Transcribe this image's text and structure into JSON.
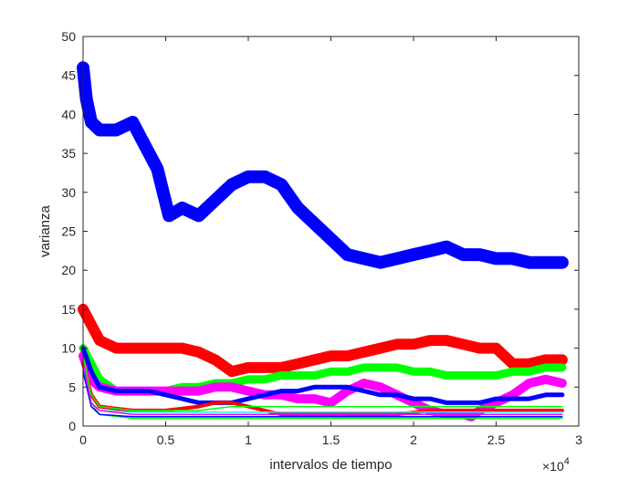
{
  "chart_data": {
    "type": "line",
    "xlabel": "intervalos de tiempo",
    "ylabel": "varianza",
    "x_exponent_label": "×10",
    "x_exponent_power": "4",
    "xlim": [
      0,
      3
    ],
    "ylim": [
      0,
      50
    ],
    "x_ticks": [
      "0",
      "0.5",
      "1",
      "1.5",
      "2",
      "2.5",
      "3"
    ],
    "y_ticks": [
      "0",
      "5",
      "10",
      "15",
      "20",
      "25",
      "30",
      "35",
      "40",
      "45",
      "50"
    ],
    "grid": false,
    "series": [
      {
        "color": "#0000ff",
        "width": 14,
        "x": [
          0,
          0.02,
          0.05,
          0.1,
          0.2,
          0.3,
          0.35,
          0.45,
          0.52,
          0.6,
          0.7,
          0.8,
          0.9,
          1.0,
          1.1,
          1.2,
          1.3,
          1.4,
          1.5,
          1.6,
          1.7,
          1.8,
          1.9,
          2.0,
          2.1,
          2.2,
          2.3,
          2.4,
          2.5,
          2.6,
          2.7,
          2.8,
          2.9
        ],
        "y": [
          46,
          42,
          39,
          38,
          38,
          39,
          37,
          33,
          27,
          28,
          27,
          29,
          31,
          32,
          32,
          31,
          28,
          26,
          24,
          22,
          21.5,
          21,
          21.5,
          22,
          22.5,
          23,
          22,
          22,
          21.5,
          21.5,
          21,
          21,
          21
        ]
      },
      {
        "color": "#ff0000",
        "width": 12,
        "x": [
          0,
          0.05,
          0.1,
          0.2,
          0.3,
          0.4,
          0.5,
          0.6,
          0.7,
          0.8,
          0.9,
          1.0,
          1.1,
          1.2,
          1.3,
          1.4,
          1.5,
          1.6,
          1.7,
          1.8,
          1.9,
          2.0,
          2.1,
          2.2,
          2.3,
          2.4,
          2.5,
          2.6,
          2.7,
          2.8,
          2.9
        ],
        "y": [
          15,
          13,
          11,
          10,
          10,
          10,
          10,
          10,
          9.5,
          8.5,
          7,
          7.5,
          7.5,
          7.5,
          8,
          8.5,
          9,
          9,
          9.5,
          10,
          10.5,
          10.5,
          11,
          11,
          10.5,
          10,
          10,
          8,
          8,
          8.5,
          8.5
        ]
      },
      {
        "color": "#00ff00",
        "width": 9,
        "x": [
          0,
          0.05,
          0.1,
          0.2,
          0.4,
          0.5,
          0.6,
          0.7,
          0.8,
          0.9,
          1.0,
          1.1,
          1.2,
          1.3,
          1.4,
          1.5,
          1.6,
          1.7,
          1.8,
          1.9,
          2.0,
          2.1,
          2.2,
          2.3,
          2.4,
          2.5,
          2.6,
          2.7,
          2.8,
          2.9
        ],
        "y": [
          10,
          8,
          6,
          4.5,
          4.5,
          4.5,
          5,
          5,
          5.5,
          5.5,
          6,
          6,
          6.5,
          6.5,
          6.5,
          7,
          7,
          7.5,
          7.5,
          7.5,
          7,
          7,
          6.5,
          6.5,
          6.5,
          6.5,
          7,
          7,
          7.5,
          7.5
        ]
      },
      {
        "color": "#ff00ff",
        "width": 10,
        "x": [
          0,
          0.05,
          0.1,
          0.2,
          0.3,
          0.5,
          0.7,
          0.8,
          0.9,
          1.0,
          1.1,
          1.2,
          1.3,
          1.4,
          1.5,
          1.6,
          1.7,
          1.8,
          1.9,
          2.0,
          2.1,
          2.2,
          2.3,
          2.35,
          2.4,
          2.5,
          2.6,
          2.7,
          2.8,
          2.9
        ],
        "y": [
          9,
          6,
          5,
          4.5,
          4.5,
          4.5,
          4.5,
          5,
          5,
          4.5,
          4,
          4,
          3.5,
          3.5,
          3,
          4.5,
          5.5,
          5,
          4,
          3,
          2,
          1.5,
          1.5,
          1.2,
          2,
          3,
          4,
          5.5,
          6,
          5.5
        ]
      },
      {
        "color": "#0000ff",
        "width": 5,
        "x": [
          0,
          0.05,
          0.1,
          0.2,
          0.3,
          0.4,
          0.5,
          0.6,
          0.7,
          0.8,
          0.9,
          1.0,
          1.1,
          1.2,
          1.3,
          1.4,
          1.5,
          1.6,
          1.7,
          1.8,
          1.9,
          2.0,
          2.1,
          2.2,
          2.3,
          2.4,
          2.5,
          2.6,
          2.7,
          2.8,
          2.9
        ],
        "y": [
          10,
          7,
          5,
          4.5,
          4.5,
          4.5,
          4,
          3.5,
          3,
          3,
          3,
          3.5,
          4,
          4.5,
          4.5,
          5,
          5,
          5,
          4.5,
          4,
          4,
          3.5,
          3.5,
          3,
          3,
          3,
          3.5,
          3.5,
          3.5,
          4,
          4
        ]
      },
      {
        "color": "#ff0000",
        "width": 4,
        "x": [
          0,
          0.05,
          0.1,
          0.3,
          0.5,
          0.7,
          0.8,
          0.9,
          1.0,
          1.1,
          1.2,
          1.3,
          1.5,
          1.7,
          1.9,
          2.1,
          2.3,
          2.5,
          2.7,
          2.9
        ],
        "y": [
          8,
          4,
          2.5,
          2,
          2,
          2.5,
          3,
          3,
          2.5,
          2,
          1.5,
          1.5,
          1.5,
          1.5,
          1.5,
          2,
          2,
          2,
          2,
          2
        ]
      },
      {
        "color": "#00ff00",
        "width": 1.5,
        "x": [
          0,
          0.05,
          0.1,
          0.3,
          0.5,
          0.7,
          0.9,
          1.1,
          1.3,
          1.5,
          1.7,
          1.9,
          2.1,
          2.3,
          2.5,
          2.7,
          2.9
        ],
        "y": [
          9,
          4,
          2.5,
          2,
          2,
          2,
          2.5,
          2.5,
          2.5,
          2.5,
          2.5,
          2.5,
          2.5,
          2.5,
          2.5,
          2.5,
          2.5
        ]
      },
      {
        "color": "#00ff00",
        "width": 1.5,
        "x": [
          0,
          0.05,
          0.1,
          0.3,
          0.5,
          0.7,
          0.9,
          1.1,
          1.3,
          1.5,
          1.7,
          1.9,
          2.1,
          2.3,
          2.5,
          2.7,
          2.9
        ],
        "y": [
          8,
          3,
          1.5,
          1,
          1,
          1,
          1,
          1,
          1,
          1,
          1,
          1,
          1,
          1,
          1,
          1,
          1
        ]
      },
      {
        "color": "#00ffff",
        "width": 1.5,
        "x": [
          0,
          0.05,
          0.1,
          0.3,
          0.5,
          0.7,
          0.9,
          1.1,
          1.3,
          1.5,
          1.7,
          1.9,
          2.1,
          2.3,
          2.5,
          2.7,
          2.9
        ],
        "y": [
          7,
          3,
          2,
          1.8,
          1.8,
          1.8,
          1.8,
          1.8,
          1.8,
          1.8,
          1.8,
          1.8,
          1.8,
          1.8,
          1.8,
          1.8,
          1.8
        ]
      },
      {
        "color": "#0000ff",
        "width": 1.5,
        "x": [
          0,
          0.05,
          0.1,
          0.3,
          0.5,
          0.7,
          0.9,
          1.1,
          1.3,
          1.5,
          1.7,
          1.9,
          2.1,
          2.3,
          2.5,
          2.7,
          2.9
        ],
        "y": [
          7,
          2.5,
          1.5,
          1.2,
          1.2,
          1.2,
          1.2,
          1.2,
          1.2,
          1.2,
          1.2,
          1.2,
          1.2,
          1.2,
          1.2,
          1.2,
          1.2
        ]
      },
      {
        "color": "#ff00ff",
        "width": 1.5,
        "x": [
          0,
          0.05,
          0.1,
          0.3,
          0.5,
          0.7,
          0.9,
          1.1,
          1.3,
          1.5,
          1.7,
          1.9,
          2.1,
          2.3,
          2.5,
          2.7,
          2.9
        ],
        "y": [
          8,
          3,
          2,
          1.5,
          1.5,
          1.5,
          1.5,
          1.5,
          1.5,
          1.5,
          1.5,
          1.5,
          1.5,
          1.5,
          1.5,
          1.5,
          1.5
        ]
      }
    ]
  }
}
